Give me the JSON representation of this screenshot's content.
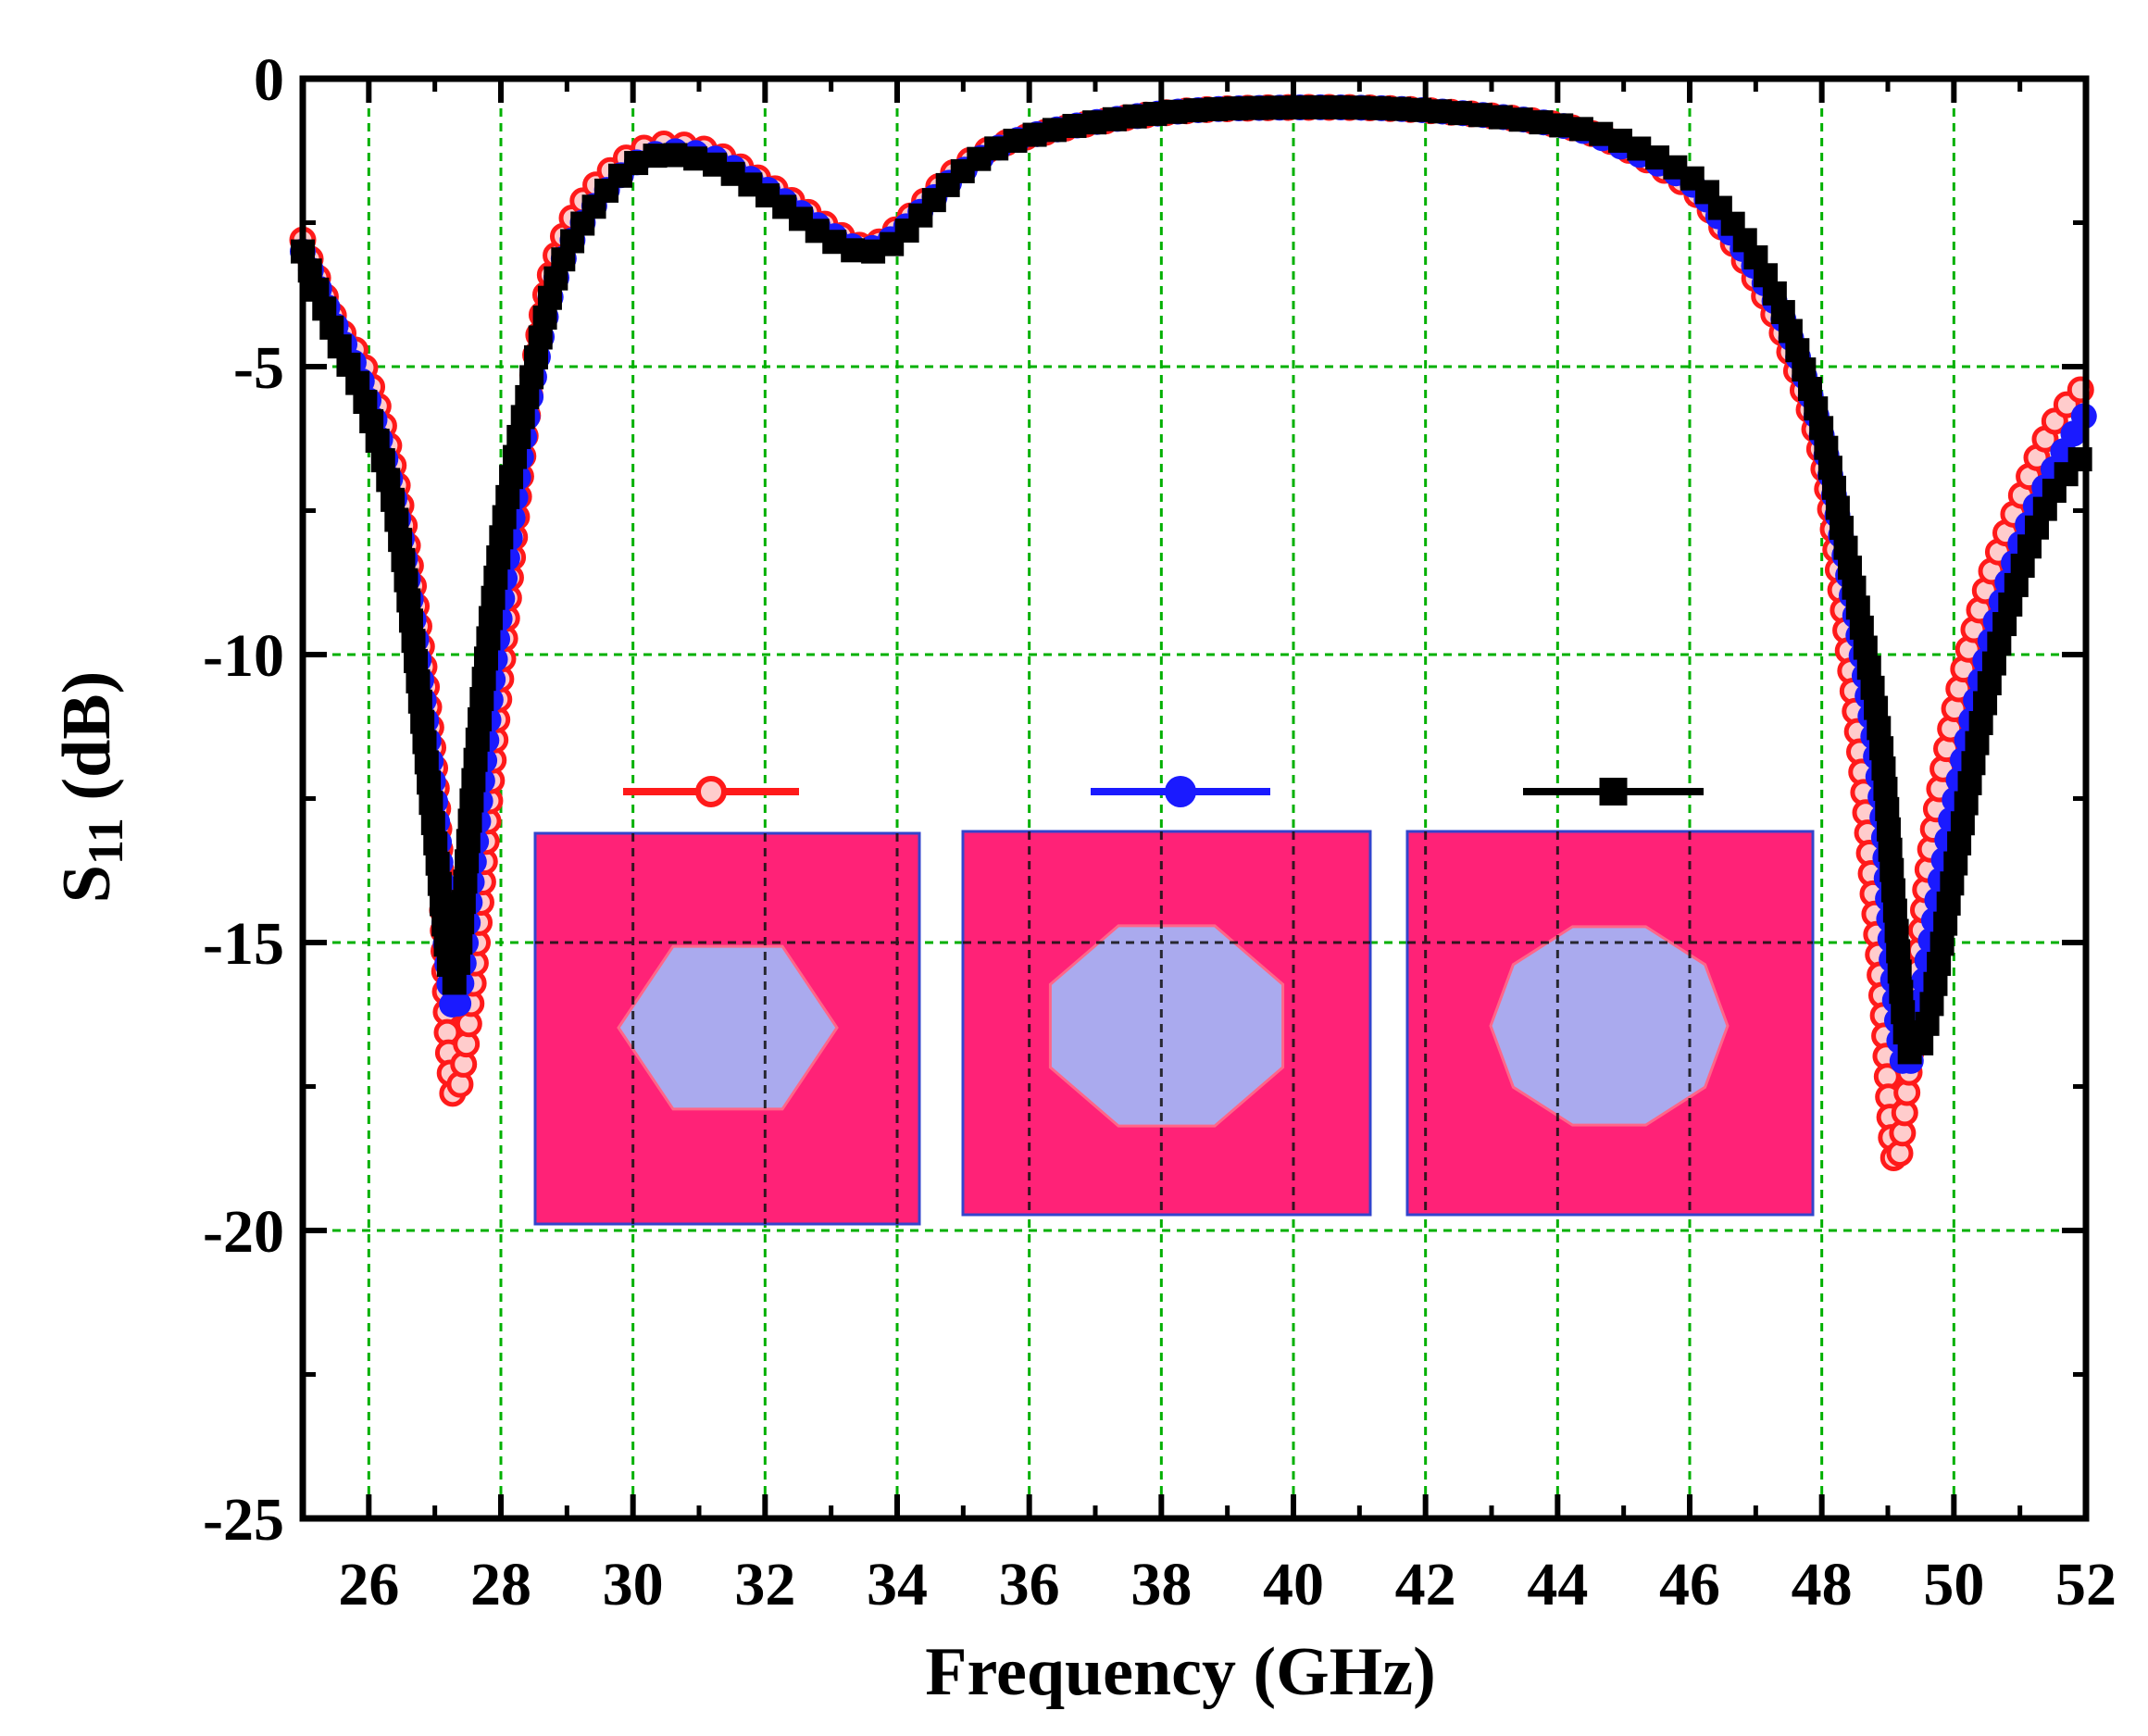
{
  "chart_data": {
    "type": "line",
    "xlabel": "Frequency (GHz)",
    "ylabel_main": "S",
    "ylabel_sub": "11",
    "ylabel_tail": " (dB)",
    "xlim": [
      25,
      52
    ],
    "ylim": [
      -25,
      0
    ],
    "xticks": [
      "26",
      "28",
      "30",
      "32",
      "34",
      "36",
      "38",
      "40",
      "42",
      "44",
      "46",
      "48",
      "50",
      "52"
    ],
    "yticks": [
      "0",
      "-5",
      "-10",
      "-15",
      "-20",
      "-25"
    ],
    "grid": true,
    "grid_color": "#00b000",
    "legend_placement": "inset above three patch shapes",
    "series": [
      {
        "color": "#ff1a1a",
        "marker": "open-circle",
        "inset_shape": "hexagon",
        "x": [
          25.0,
          25.5,
          26.0,
          26.5,
          27.0,
          27.2,
          27.35,
          27.6,
          28.0,
          28.5,
          29.0,
          30.0,
          31.0,
          32.0,
          33.0,
          33.5,
          34.0,
          35.0,
          36.0,
          38.0,
          40.0,
          42.0,
          44.0,
          45.0,
          46.0,
          46.5,
          47.0,
          47.5,
          48.0,
          48.3,
          48.6,
          48.9,
          49.1,
          49.3,
          49.6,
          50.0,
          50.5,
          51.0,
          51.5,
          52.0
        ],
        "y": [
          -2.8,
          -4.2,
          -5.2,
          -7.5,
          -12.0,
          -16.8,
          -17.6,
          -15.5,
          -10.4,
          -5.0,
          -2.6,
          -1.3,
          -1.2,
          -1.8,
          -2.6,
          -2.9,
          -2.6,
          -1.5,
          -1.0,
          -0.6,
          -0.5,
          -0.55,
          -0.8,
          -1.2,
          -1.9,
          -2.6,
          -3.5,
          -4.7,
          -6.6,
          -9.0,
          -12.0,
          -15.8,
          -18.8,
          -17.5,
          -13.8,
          -11.0,
          -8.8,
          -7.3,
          -6.0,
          -5.3
        ]
      },
      {
        "color": "#1a1aff",
        "marker": "filled-circle",
        "inset_shape": "octagon",
        "x": [
          25.0,
          25.5,
          26.0,
          26.5,
          27.0,
          27.2,
          27.35,
          27.6,
          28.0,
          28.5,
          29.0,
          30.0,
          31.0,
          32.0,
          33.0,
          33.5,
          34.0,
          35.0,
          36.0,
          38.0,
          40.0,
          42.0,
          44.0,
          45.0,
          46.0,
          46.5,
          47.0,
          47.5,
          48.0,
          48.3,
          48.6,
          48.9,
          49.1,
          49.3,
          49.6,
          50.0,
          50.5,
          51.0,
          51.5,
          52.0
        ],
        "y": [
          -3.0,
          -4.3,
          -5.6,
          -8.0,
          -12.5,
          -15.5,
          -16.1,
          -13.5,
          -9.2,
          -5.2,
          -3.0,
          -1.5,
          -1.3,
          -1.9,
          -2.7,
          -2.95,
          -2.7,
          -1.6,
          -1.0,
          -0.6,
          -0.5,
          -0.55,
          -0.8,
          -1.2,
          -1.8,
          -2.5,
          -3.3,
          -4.4,
          -6.2,
          -8.0,
          -10.0,
          -12.6,
          -15.9,
          -17.2,
          -15.3,
          -12.6,
          -10.0,
          -8.1,
          -6.8,
          -5.8
        ]
      },
      {
        "color": "#000000",
        "marker": "filled-square",
        "inset_shape": "decagon",
        "x": [
          25.0,
          25.5,
          26.0,
          26.5,
          27.0,
          27.2,
          27.35,
          27.6,
          28.0,
          28.5,
          29.0,
          30.0,
          31.0,
          32.0,
          33.0,
          33.5,
          34.0,
          35.0,
          36.0,
          38.0,
          40.0,
          42.0,
          44.0,
          45.0,
          46.0,
          46.5,
          47.0,
          47.5,
          48.0,
          48.3,
          48.6,
          48.9,
          49.1,
          49.3,
          49.6,
          50.0,
          50.5,
          51.0,
          51.5,
          52.0
        ],
        "y": [
          -3.0,
          -4.5,
          -5.8,
          -8.2,
          -13.2,
          -15.3,
          -15.4,
          -12.0,
          -8.0,
          -5.0,
          -3.0,
          -1.5,
          -1.4,
          -2.0,
          -2.8,
          -3.0,
          -2.8,
          -1.6,
          -1.0,
          -0.6,
          -0.5,
          -0.55,
          -0.8,
          -1.1,
          -1.7,
          -2.3,
          -3.1,
          -4.3,
          -6.1,
          -7.8,
          -9.5,
          -11.6,
          -14.3,
          -16.8,
          -16.4,
          -13.8,
          -10.7,
          -8.6,
          -7.2,
          -6.5
        ]
      }
    ]
  }
}
